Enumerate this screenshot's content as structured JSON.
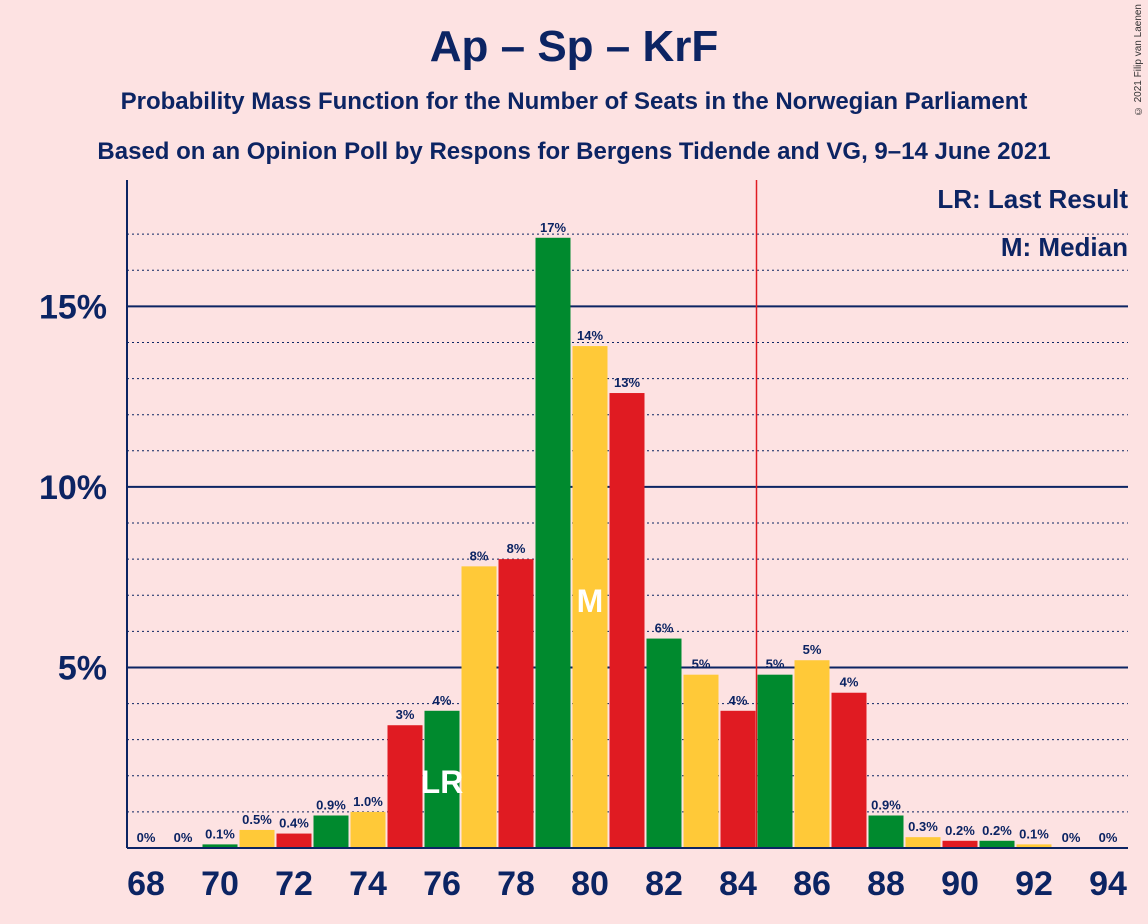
{
  "title": "Ap – Sp – KrF",
  "subtitle1": "Probability Mass Function for the Number of Seats in the Norwegian Parliament",
  "subtitle2": "Based on an Opinion Poll by Respons for Bergens Tidende and VG, 9–14 June 2021",
  "copyright": "© 2021 Filip van Laenen",
  "legend": {
    "lr": "LR: Last Result",
    "m": "M: Median"
  },
  "colors": {
    "green": "#008a2e",
    "yellow": "#ffc938",
    "red": "#e01b22",
    "axis": "#0c2463",
    "majority_line": "#e01b22",
    "background": "#fde2e2"
  },
  "chart_data": {
    "type": "bar",
    "x": [
      68,
      69,
      70,
      71,
      72,
      73,
      74,
      75,
      76,
      77,
      78,
      79,
      80,
      81,
      82,
      83,
      84,
      85,
      86,
      87,
      88,
      89,
      90,
      91,
      92,
      93,
      94
    ],
    "values": [
      0,
      0,
      0.1,
      0.5,
      0.4,
      0.9,
      1.0,
      3.4,
      3.8,
      7.8,
      8.0,
      16.9,
      13.9,
      12.6,
      5.8,
      4.8,
      3.8,
      4.8,
      5.2,
      4.3,
      0.9,
      0.3,
      0.2,
      0.2,
      0.1,
      0,
      0
    ],
    "labels": [
      "0%",
      "0%",
      "0.1%",
      "0.5%",
      "0.4%",
      "0.9%",
      "1.0%",
      "3%",
      "4%",
      "8%",
      "8%",
      "17%",
      "14%",
      "13%",
      "6%",
      "5%",
      "4%",
      "5%",
      "5%",
      "4%",
      "0.9%",
      "0.3%",
      "0.2%",
      "0.2%",
      "0.1%",
      "0%",
      "0%"
    ],
    "bar_colors": [
      "green",
      "yellow",
      "green",
      "yellow",
      "red",
      "green",
      "yellow",
      "red",
      "green",
      "yellow",
      "red",
      "green",
      "yellow",
      "red",
      "green",
      "yellow",
      "red",
      "green",
      "yellow",
      "red",
      "green",
      "yellow",
      "red",
      "green",
      "yellow",
      "red",
      "green"
    ],
    "xticks": [
      68,
      70,
      72,
      74,
      76,
      78,
      80,
      82,
      84,
      86,
      88,
      90,
      92,
      94
    ],
    "yticks": [
      5,
      10,
      15
    ],
    "ytick_labels": [
      "5%",
      "10%",
      "15%"
    ],
    "ylim": [
      0,
      18.5
    ],
    "last_result_seat": 76,
    "last_result_marker": "LR",
    "median_seat": 80,
    "median_marker": "M",
    "majority_line_x": 84.5,
    "grid": true,
    "legend_position": "top-right"
  }
}
